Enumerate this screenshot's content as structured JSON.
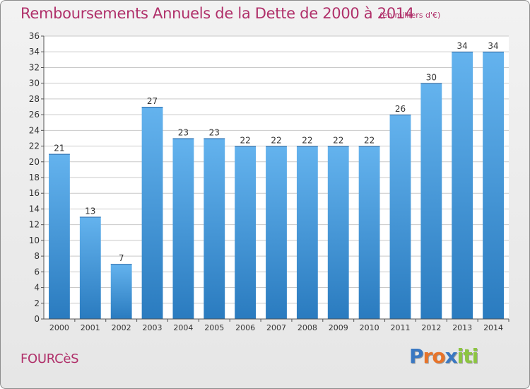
{
  "header": {
    "title": "Remboursements Annuels de la Dette de 2000 à 2014",
    "unit": "(en milliers d'€)"
  },
  "footer": {
    "town": "FOURCèS",
    "logo": {
      "letters": [
        "P",
        "r",
        "o",
        "x",
        "i",
        "t",
        "i"
      ],
      "text": "Proxiti"
    }
  },
  "colors": {
    "bar_light": "#64b3ee",
    "bar_dark": "#2a7bbf",
    "title": "#b0306a",
    "grid": "#c9c9c9",
    "axis": "#555555",
    "logo": [
      "#3a78c2",
      "#e8742a",
      "#e8742a",
      "#3a78c2",
      "#8cc540",
      "#8cc540",
      "#8cc540"
    ]
  },
  "chart_data": {
    "type": "bar",
    "categories": [
      "2000",
      "2001",
      "2002",
      "2003",
      "2004",
      "2005",
      "2006",
      "2007",
      "2008",
      "2009",
      "2010",
      "2011",
      "2012",
      "2013",
      "2014"
    ],
    "values": [
      21,
      13,
      7,
      27,
      23,
      23,
      22,
      22,
      22,
      22,
      22,
      26,
      30,
      34,
      34
    ],
    "ylim": [
      0,
      36
    ],
    "yticks": [
      0,
      2,
      4,
      6,
      8,
      10,
      12,
      14,
      16,
      18,
      20,
      22,
      24,
      26,
      28,
      30,
      32,
      34,
      36
    ],
    "grid": true,
    "data_labels": true
  }
}
